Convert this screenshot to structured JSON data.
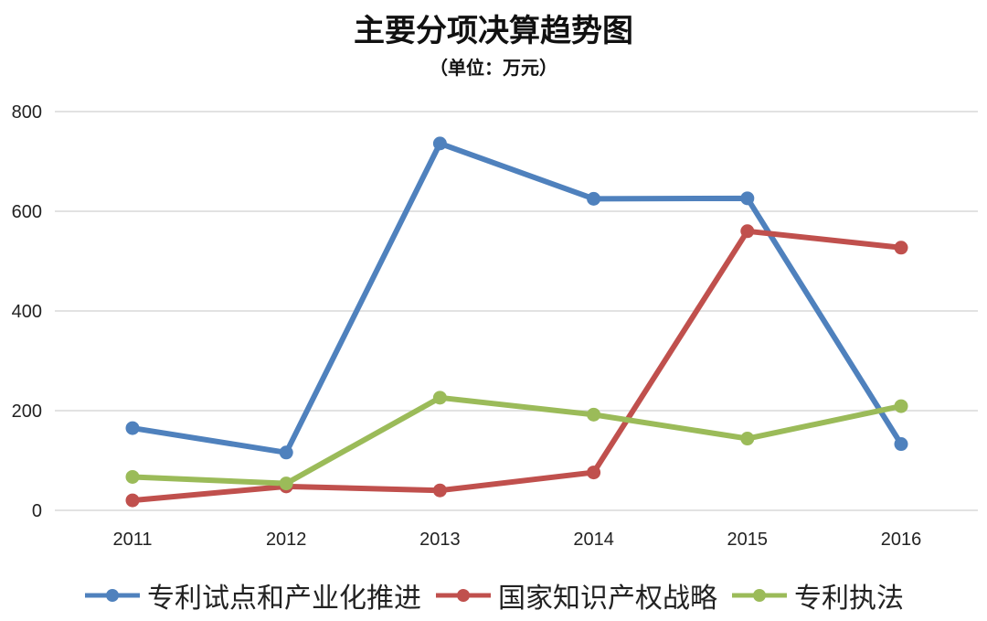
{
  "chart_data": {
    "type": "line",
    "title": "主要分项决算趋势图",
    "subtitle": "（单位：万元）",
    "xlabel": "",
    "ylabel": "",
    "categories": [
      "2011",
      "2012",
      "2013",
      "2014",
      "2015",
      "2016"
    ],
    "ylim": [
      0,
      800
    ],
    "yticks": [
      "0",
      "200",
      "400",
      "600",
      "800"
    ],
    "grid": true,
    "legend_position": "bottom",
    "series": [
      {
        "name": "专利试点和产业化推进",
        "color": "#4F81BD",
        "values": [
          165,
          116,
          736,
          625,
          626,
          133
        ]
      },
      {
        "name": "国家知识产权战略",
        "color": "#C0504D",
        "values": [
          20,
          48,
          40,
          76,
          560,
          527
        ]
      },
      {
        "name": "专利执法",
        "color": "#9BBB59",
        "values": [
          67,
          54,
          226,
          192,
          144,
          209
        ]
      }
    ]
  }
}
